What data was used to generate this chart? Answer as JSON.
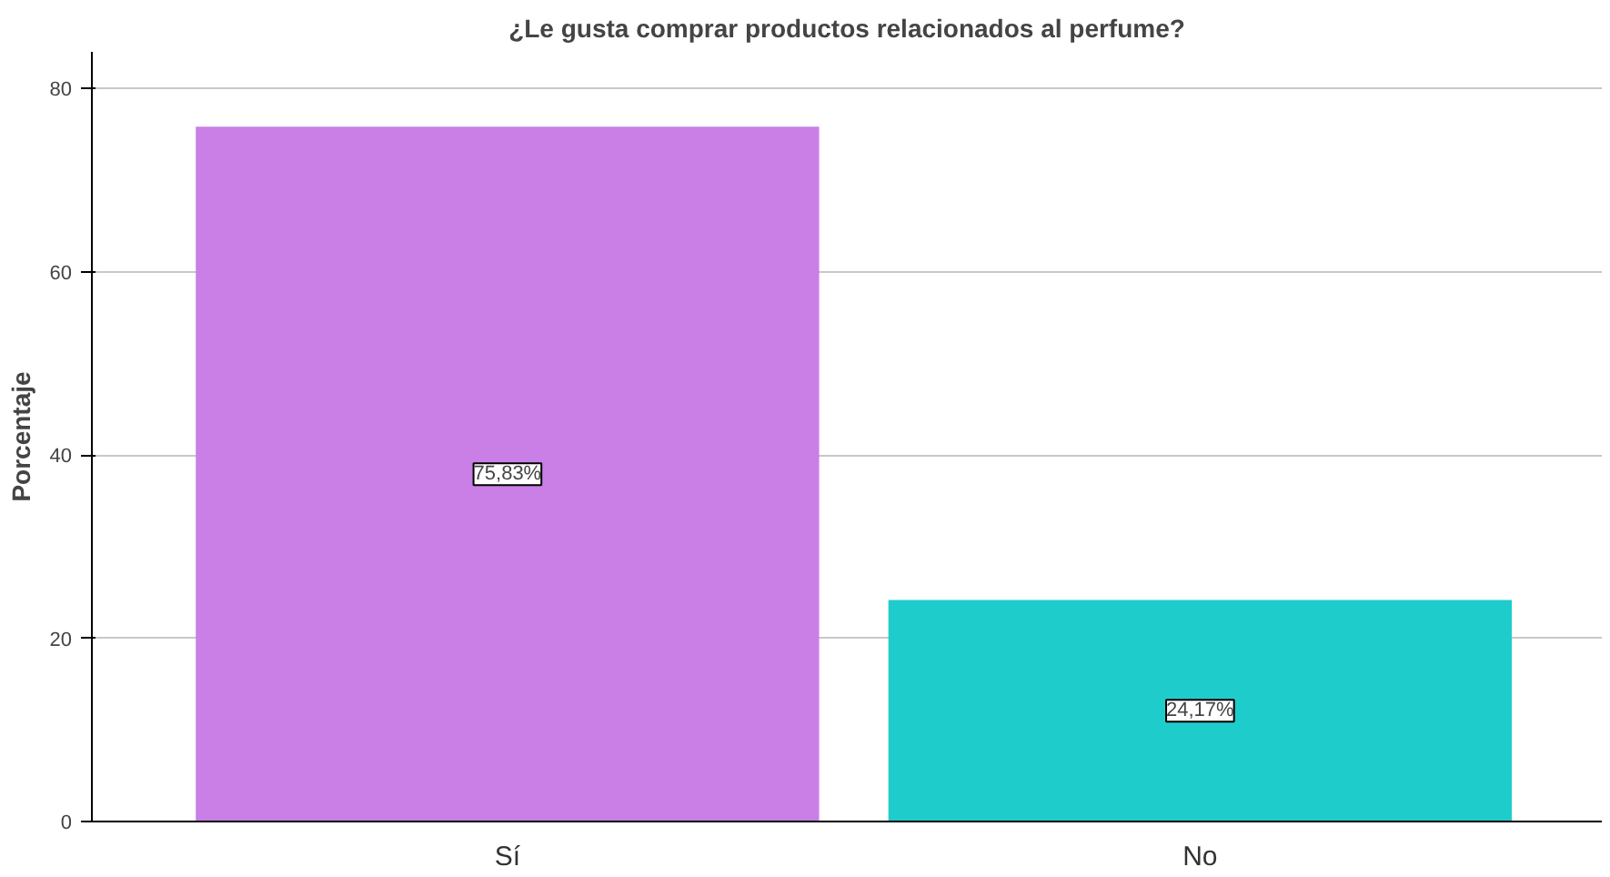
{
  "chart_data": {
    "type": "bar",
    "title": "¿Le gusta comprar productos relacionados al perfume?",
    "ylabel": "Porcentaje",
    "categories": [
      "Sí",
      "No"
    ],
    "values": [
      75.83,
      24.17
    ],
    "colors": [
      "#c97fe6",
      "#1fcccc"
    ],
    "value_labels": [
      "75,83%",
      "24,17%"
    ],
    "ylim": [
      0,
      84
    ],
    "yticks": [
      0,
      20,
      40,
      60,
      80
    ],
    "grid": "y"
  }
}
